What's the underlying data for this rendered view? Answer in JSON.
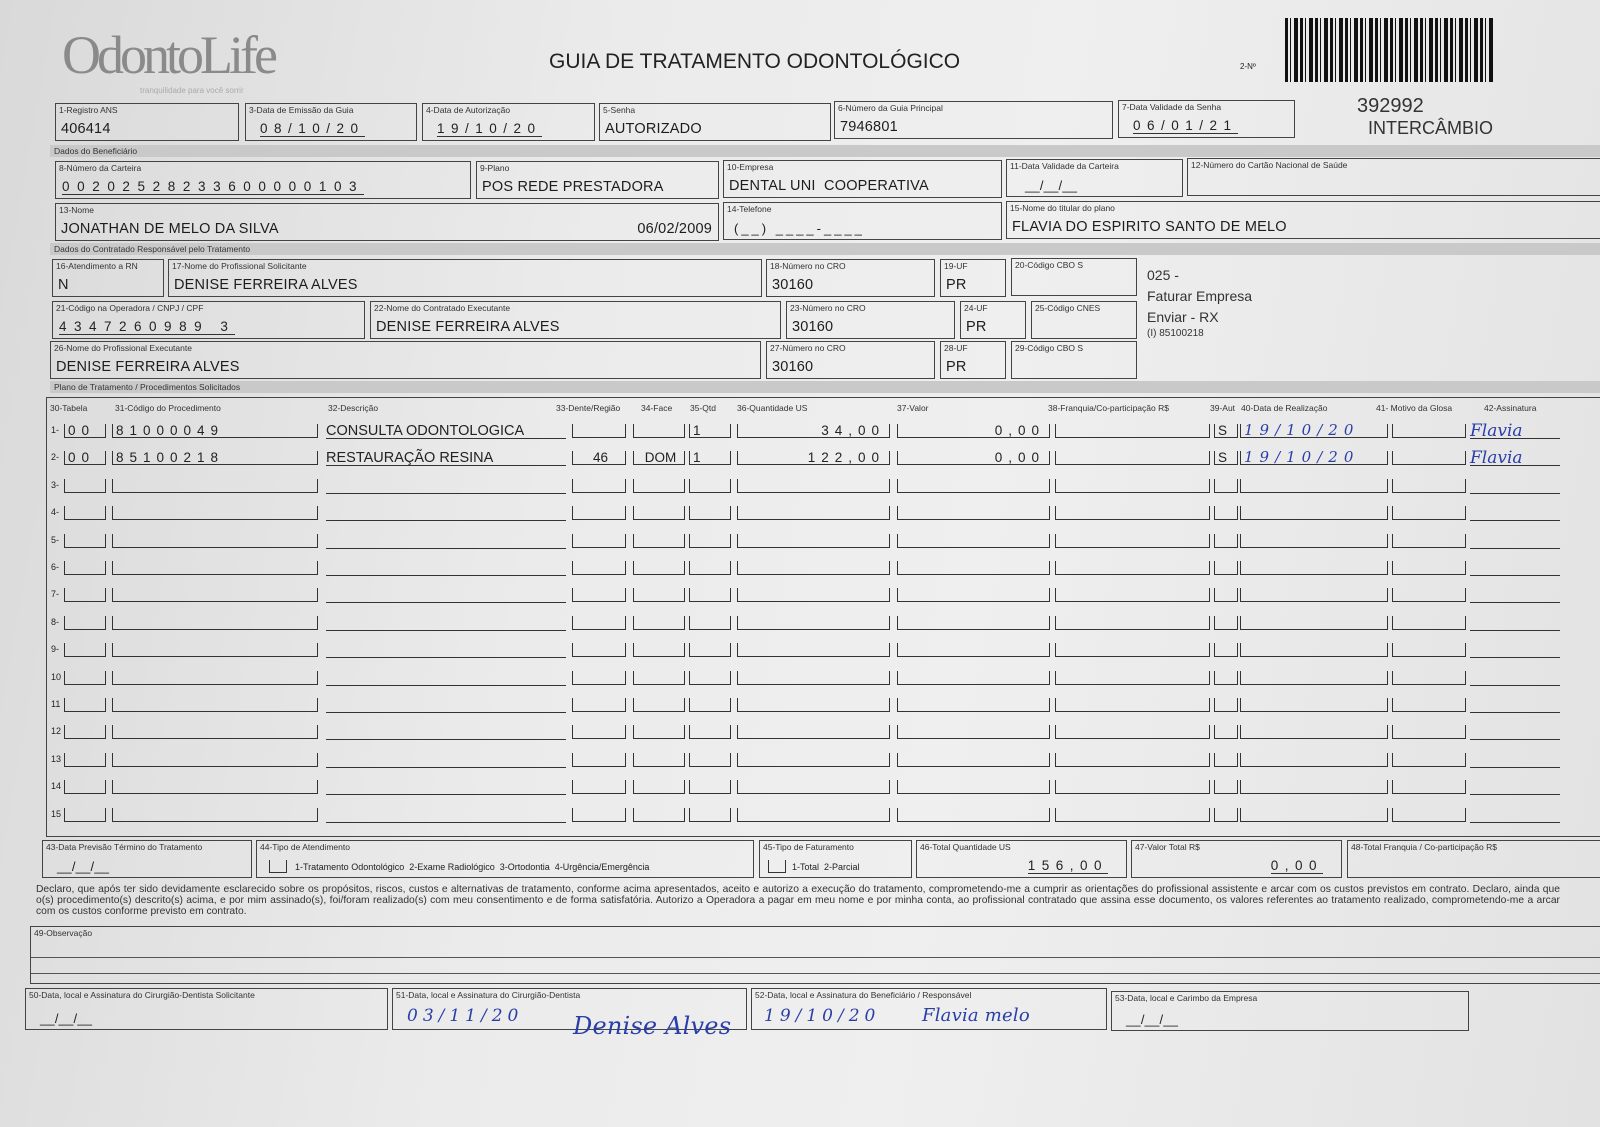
{
  "header": {
    "logo_text": "OdontoLife",
    "logo_tagline": "tranquilidade para você sorrir",
    "title": "GUIA DE TRATAMENTO ODONTOLÓGICO",
    "guide_number_label": "2-Nº",
    "guide_code": "392992",
    "guide_type": "INTERCÂMBIO"
  },
  "top": {
    "registro_ans": {
      "label": "1-Registro ANS",
      "value": "406414"
    },
    "data_emissao": {
      "label": "3-Data de Emissão da Guia",
      "value": "08/10/20"
    },
    "data_autorizacao": {
      "label": "4-Data de Autorização",
      "value": "19/10/20"
    },
    "senha": {
      "label": "5-Senha",
      "value": "AUTORIZADO"
    },
    "guia_principal": {
      "label": "6-Número da Guia Principal",
      "value": "7946801"
    },
    "validade_senha": {
      "label": "7-Data Validade da Senha",
      "value": "06/01/21"
    }
  },
  "beneficiario": {
    "section_label": "Dados do Beneficiário",
    "carteira": {
      "label": "8-Número da Carteira",
      "value": "00202528233600000103"
    },
    "plano": {
      "label": "9-Plano",
      "value": "POS REDE PRESTADORA"
    },
    "empresa": {
      "label": "10-Empresa",
      "value": "DENTAL UNI  COOPERATIVA"
    },
    "validade_carteira": {
      "label": "11-Data Validade da Carteira",
      "value": "__/__/__"
    },
    "cns": {
      "label": "12-Número do Cartão Nacional de Saúde",
      "value": ""
    },
    "nome": {
      "label": "13-Nome",
      "value": "JONATHAN DE MELO DA SILVA",
      "birth_date": "06/02/2009"
    },
    "telefone": {
      "label": "14-Telefone",
      "value": "(__) ____-____"
    },
    "titular": {
      "label": "15-Nome do titular do plano",
      "value": "FLAVIA DO ESPIRITO SANTO DE MELO"
    }
  },
  "contratado": {
    "section_label": "Dados do Contratado Responsável pelo Tratamento",
    "atendimento_rn": {
      "label": "16-Atendimento a RN",
      "value": "N"
    },
    "prof_solicitante": {
      "label": "17-Nome do Profissional Solicitante",
      "value": "DENISE FERREIRA ALVES"
    },
    "cro_18": {
      "label": "18-Número no CRO",
      "value": "30160"
    },
    "uf_19": {
      "label": "19-UF",
      "value": "PR"
    },
    "cbo_20": {
      "label": "20-Código CBO S",
      "value": ""
    },
    "codigo_operadora": {
      "label": "21-Código na Operadora / CNPJ / CPF",
      "value": "4347260989 3"
    },
    "contratado_executante": {
      "label": "22-Nome do Contratado Executante",
      "value": "DENISE FERREIRA ALVES"
    },
    "cro_23": {
      "label": "23-Número no CRO",
      "value": "30160"
    },
    "uf_24": {
      "label": "24-UF",
      "value": "PR"
    },
    "cnes": {
      "label": "25-Código CNES",
      "value": ""
    },
    "prof_executante": {
      "label": "26-Nome do Profissional Executante",
      "value": "DENISE FERREIRA ALVES"
    },
    "cro_27": {
      "label": "27-Número no CRO",
      "value": "30160"
    },
    "uf_28": {
      "label": "28-UF",
      "value": "PR"
    },
    "cbo_29": {
      "label": "29-Código CBO S",
      "value": ""
    },
    "notes": [
      "025 -",
      "Faturar Empresa",
      "Enviar - RX",
      "(I) 85100218"
    ]
  },
  "procedimentos": {
    "section_label": "Plano de Tratamento / Procedimentos Solicitados",
    "headers": [
      "30-Tabela",
      "31-Código do Procedimento",
      "32-Descrição",
      "33-Dente/Região",
      "34-Face",
      "35-Qtd",
      "36-Quantidade US",
      "37-Valor",
      "38-Franquia/Co-participação R$",
      "39-Aut",
      "40-Data de Realização",
      "41- Motivo da Glosa",
      "42-Assinatura"
    ],
    "rows": [
      {
        "num": "1-",
        "tabela": "00",
        "codigo": "81000049",
        "descricao": "CONSULTA ODONTOLOGICA",
        "dente": "",
        "face": "",
        "qtd": "1",
        "qtd_us": "34,00",
        "valor": "0,00",
        "franquia": "",
        "aut": "S",
        "data": "19/10/20",
        "glosa": "",
        "assinatura": "Flavia"
      },
      {
        "num": "2-",
        "tabela": "00",
        "codigo": "85100218",
        "descricao": "RESTAURAÇÃO RESINA",
        "dente": "46",
        "face": "DOM",
        "qtd": "1",
        "qtd_us": "122,00",
        "valor": "0,00",
        "franquia": "",
        "aut": "S",
        "data": "19/10/20",
        "glosa": "",
        "assinatura": "Flavia"
      },
      {
        "num": "3-"
      },
      {
        "num": "4-"
      },
      {
        "num": "5-"
      },
      {
        "num": "6-"
      },
      {
        "num": "7-"
      },
      {
        "num": "8-"
      },
      {
        "num": "9-"
      },
      {
        "num": "10"
      },
      {
        "num": "11"
      },
      {
        "num": "12"
      },
      {
        "num": "13"
      },
      {
        "num": "14"
      },
      {
        "num": "15"
      }
    ]
  },
  "totais": {
    "previsao_termino": {
      "label": "43-Data Previsão Término do Tratamento",
      "value": "__/__/__"
    },
    "tipo_atendimento": {
      "label": "44-Tipo de Atendimento",
      "options": "1-Tratamento Odontológico  2-Exame Radiológico  3-Ortodontia  4-Urgência/Emergência"
    },
    "tipo_faturamento": {
      "label": "45-Tipo de Faturamento",
      "options": "1-Total  2-Parcial"
    },
    "total_us": {
      "label": "46-Total Quantidade US",
      "value": "156,00"
    },
    "valor_total": {
      "label": "47-Valor Total R$",
      "value": "0,00"
    },
    "total_franquia": {
      "label": "48-Total Franquia / Co-participação R$",
      "value": ""
    }
  },
  "declaracao": "Declaro, que após ter sido devidamente esclarecido sobre os propósitos, riscos, custos e alternativas de tratamento, conforme acima apresentados, aceito e autorizo a execução do tratamento, comprometendo-me a cumprir as orientações do profissional assistente e arcar com os custos previstos em contrato. Declaro, ainda que o(s) procedimento(s) descrito(s) acima, e por mim assinado(s), foi/foram realizado(s) com meu consentimento e de forma satisfatória. Autorizo a Operadora a pagar em meu nome e por minha conta, ao profissional contratado que assina esse documento, os valores referentes ao tratamento realizado, comprometendo-me a arcar com os custos conforme previsto em contrato.",
  "observacao": {
    "label": "49-Observação",
    "value": ""
  },
  "assinaturas": {
    "s50": {
      "label": "50-Data, local e Assinatura do Cirurgião-Dentista Solicitante",
      "date": "__/__/__"
    },
    "s51": {
      "label": "51-Data, local e Assinatura do Cirurgião-Dentista",
      "date": "03/11/20",
      "signature": "Denise Alves"
    },
    "s52": {
      "label": "52-Data, local e Assinatura do Beneficiário / Responsável",
      "date": "19/10/20",
      "signature": "Flavia melo"
    },
    "s53": {
      "label": "53-Data, local e Carimbo da Empresa",
      "date": "__/__/__"
    }
  }
}
